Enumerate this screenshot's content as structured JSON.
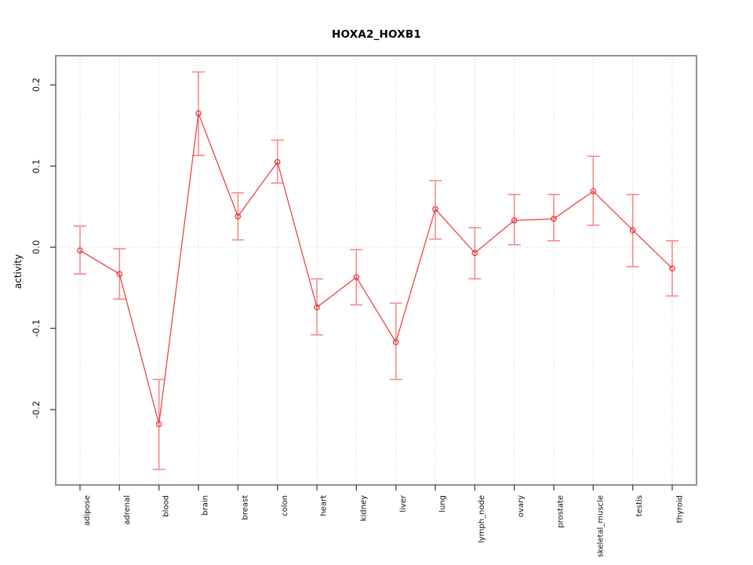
{
  "chart_data": {
    "type": "line",
    "title": "HOXA2_HOXB1",
    "xlabel": "",
    "ylabel": "activity",
    "categories": [
      "adipose",
      "adrenal",
      "blood",
      "brain",
      "breast",
      "colon",
      "heart",
      "kidney",
      "liver",
      "lung",
      "lymph_node",
      "ovary",
      "prostate",
      "skeletal_muscle",
      "testis",
      "thyroid"
    ],
    "series": [
      {
        "name": "HOXA2_HOXB1 activity",
        "values": [
          -0.004,
          -0.033,
          -0.218,
          0.165,
          0.038,
          0.105,
          -0.074,
          -0.037,
          -0.117,
          0.047,
          -0.007,
          0.033,
          0.035,
          0.069,
          0.021,
          -0.026
        ],
        "error_high": [
          0.026,
          -0.002,
          -0.163,
          0.216,
          0.067,
          0.132,
          -0.039,
          -0.003,
          -0.069,
          0.082,
          0.024,
          0.065,
          0.065,
          0.112,
          0.065,
          0.008
        ],
        "error_low": [
          -0.033,
          -0.064,
          -0.274,
          0.113,
          0.009,
          0.079,
          -0.108,
          -0.071,
          -0.163,
          0.01,
          -0.039,
          0.003,
          0.008,
          0.027,
          -0.024,
          -0.06
        ]
      }
    ],
    "yticks": [
      {
        "value": 0.2,
        "label": "0.2"
      },
      {
        "value": 0.1,
        "label": "0.1"
      },
      {
        "value": 0.0,
        "label": "0.0"
      },
      {
        "value": -0.1,
        "label": "-0.1"
      },
      {
        "value": -0.2,
        "label": "-0.2"
      }
    ],
    "ylim": [
      -0.293,
      0.236
    ],
    "marker": "open-circle",
    "grid": {
      "vertical_per_category": "dotted",
      "horizontal_zero_line": "dotted"
    },
    "legend_position": "none",
    "colors": {
      "line": "#ef4444",
      "error_bar": "#f58a8a",
      "marker": "#e93b3b",
      "grid": "#d6d6d6",
      "box_border": "#919191",
      "tick": "#4d4d4d",
      "text": "#111111",
      "background": "#ffffff"
    }
  }
}
